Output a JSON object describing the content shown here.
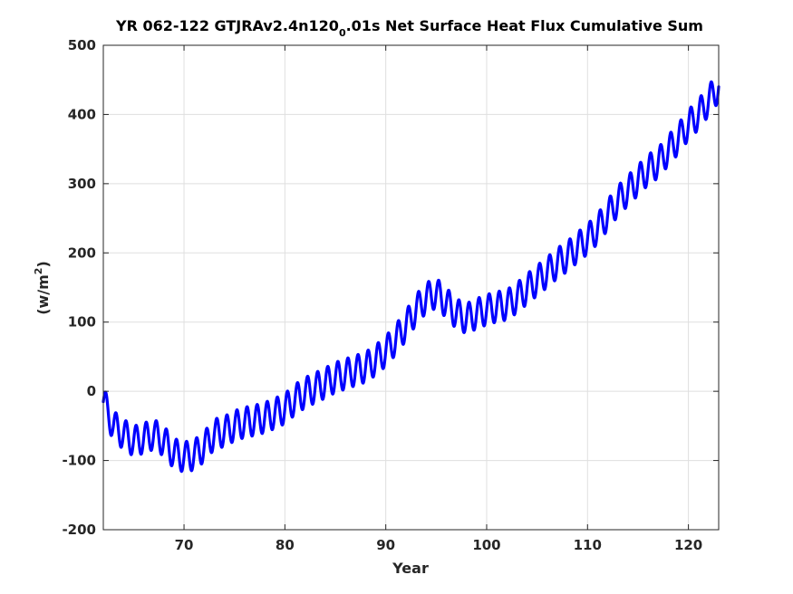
{
  "chart_data": {
    "type": "line",
    "title_main": "YR 062-122 GTJRAv2.4n120",
    "title_sub": "0",
    "title_rest": ".01s Net Surface Heat Flux  Cumulative Sum",
    "xlabel": "Year",
    "ylabel": "(w/m",
    "ylabel_sup": "2",
    "ylabel_close": ")",
    "xlim": [
      62,
      123
    ],
    "ylim": [
      -200,
      500
    ],
    "xticks": [
      70,
      80,
      90,
      100,
      110,
      120
    ],
    "yticks": [
      -200,
      -100,
      0,
      100,
      200,
      300,
      400,
      500
    ],
    "xtick_labels": [
      "70",
      "80",
      "90",
      "100",
      "110",
      "120"
    ],
    "ytick_labels": [
      "-200",
      "-100",
      "0",
      "100",
      "200",
      "300",
      "400",
      "500"
    ],
    "grid": true,
    "series": [
      {
        "color": "#0000ff",
        "annual_cycle_amplitude": 22,
        "annual_cycle_phase": 0.25,
        "x": [
          62,
          63,
          64,
          65,
          66,
          67,
          68,
          69,
          70,
          71,
          72,
          73,
          74,
          75,
          76,
          77,
          78,
          79,
          80,
          81,
          82,
          83,
          84,
          85,
          86,
          87,
          88,
          89,
          90,
          91,
          92,
          93,
          94,
          95,
          96,
          97,
          98,
          99,
          100,
          101,
          102,
          103,
          104,
          105,
          106,
          107,
          108,
          109,
          110,
          111,
          112,
          113,
          114,
          115,
          116,
          117,
          118,
          119,
          120,
          121,
          122,
          123
        ],
        "y": [
          -15,
          -50,
          -62,
          -72,
          -68,
          -62,
          -72,
          -90,
          -95,
          -92,
          -80,
          -62,
          -58,
          -50,
          -45,
          -42,
          -38,
          -32,
          -25,
          -12,
          -2,
          5,
          12,
          20,
          25,
          30,
          35,
          45,
          58,
          75,
          95,
          118,
          135,
          142,
          128,
          112,
          105,
          112,
          118,
          122,
          125,
          135,
          148,
          160,
          172,
          185,
          195,
          208,
          220,
          235,
          255,
          275,
          290,
          305,
          320,
          330,
          348,
          365,
          385,
          400,
          420,
          440
        ]
      }
    ]
  }
}
